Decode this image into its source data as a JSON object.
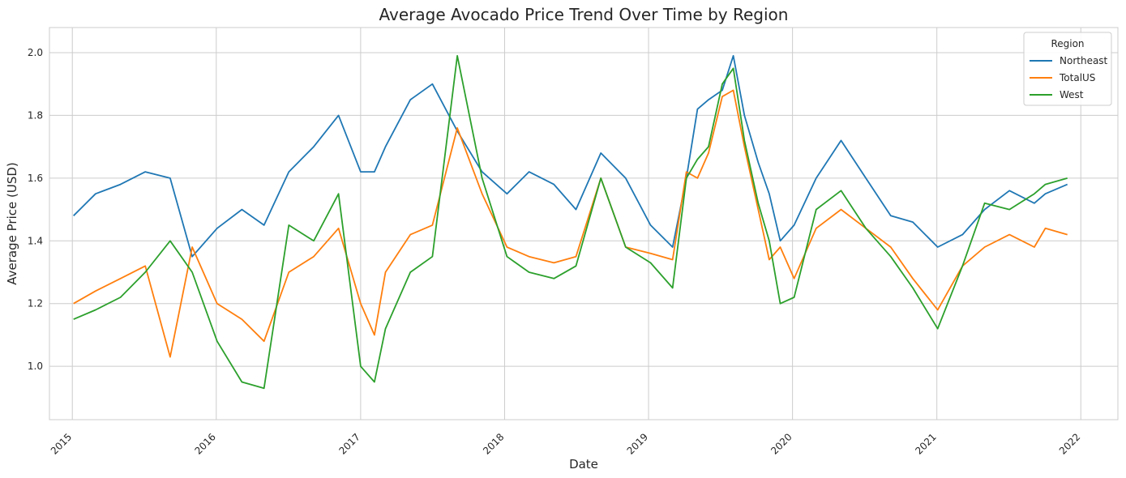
{
  "chart_data": {
    "type": "line",
    "title": "Average Avocado Price Trend Over Time by Region",
    "xlabel": "Date",
    "ylabel": "Average Price (USD)",
    "xlim": [
      "2014-11-04",
      "2022-04-05"
    ],
    "ylim": [
      0.83,
      2.08
    ],
    "x_ticks": [
      "2015",
      "2016",
      "2017",
      "2018",
      "2019",
      "2020",
      "2021",
      "2022"
    ],
    "y_ticks": [
      "1.0",
      "1.2",
      "1.4",
      "1.6",
      "1.8",
      "2.0"
    ],
    "grid": true,
    "legend": {
      "title": "Region",
      "position": "top-right"
    },
    "dates": [
      "2015-01-04",
      "2015-03-01",
      "2015-05-03",
      "2015-07-05",
      "2015-09-06",
      "2015-11-01",
      "2016-01-03",
      "2016-03-06",
      "2016-05-01",
      "2016-07-03",
      "2016-09-04",
      "2016-11-06",
      "2017-01-01",
      "2017-02-05",
      "2017-03-05",
      "2017-05-07",
      "2017-07-02",
      "2017-09-03",
      "2017-11-05",
      "2018-01-07",
      "2018-03-04",
      "2018-05-06",
      "2018-07-01",
      "2018-09-02",
      "2018-11-04",
      "2019-01-06",
      "2019-03-03",
      "2019-04-07",
      "2019-05-05",
      "2019-06-02",
      "2019-07-07",
      "2019-08-04",
      "2019-09-01",
      "2019-10-06",
      "2019-11-03",
      "2019-12-01",
      "2020-01-05",
      "2020-03-01",
      "2020-05-03",
      "2020-07-05",
      "2020-09-06",
      "2020-11-01",
      "2021-01-03",
      "2021-03-07",
      "2021-05-02",
      "2021-07-04",
      "2021-09-05",
      "2021-10-03",
      "2021-11-28"
    ],
    "series": [
      {
        "name": "Northeast",
        "color": "#1f77b4",
        "values": [
          1.48,
          1.55,
          1.58,
          1.62,
          1.6,
          1.35,
          1.44,
          1.5,
          1.45,
          1.62,
          1.7,
          1.8,
          1.62,
          1.62,
          1.7,
          1.85,
          1.9,
          1.75,
          1.62,
          1.55,
          1.62,
          1.58,
          1.5,
          1.68,
          1.6,
          1.45,
          1.38,
          1.6,
          1.82,
          1.85,
          1.88,
          1.99,
          1.8,
          1.65,
          1.55,
          1.4,
          1.45,
          1.6,
          1.72,
          1.6,
          1.48,
          1.46,
          1.38,
          1.42,
          1.5,
          1.56,
          1.52,
          1.55,
          1.58
        ]
      },
      {
        "name": "TotalUS",
        "color": "#ff7f0e",
        "values": [
          1.2,
          1.24,
          1.28,
          1.32,
          1.03,
          1.38,
          1.2,
          1.15,
          1.08,
          1.3,
          1.35,
          1.44,
          1.2,
          1.1,
          1.3,
          1.42,
          1.45,
          1.76,
          1.55,
          1.38,
          1.35,
          1.33,
          1.35,
          1.6,
          1.38,
          1.36,
          1.34,
          1.62,
          1.6,
          1.68,
          1.86,
          1.88,
          1.7,
          1.5,
          1.34,
          1.38,
          1.28,
          1.44,
          1.5,
          1.44,
          1.38,
          1.28,
          1.18,
          1.32,
          1.38,
          1.42,
          1.38,
          1.44,
          1.42
        ]
      },
      {
        "name": "West",
        "color": "#2ca02c",
        "values": [
          1.15,
          1.18,
          1.22,
          1.3,
          1.4,
          1.3,
          1.08,
          0.95,
          0.93,
          1.45,
          1.4,
          1.55,
          1.0,
          0.95,
          1.12,
          1.3,
          1.35,
          1.99,
          1.6,
          1.35,
          1.3,
          1.28,
          1.32,
          1.6,
          1.38,
          1.33,
          1.25,
          1.6,
          1.66,
          1.7,
          1.9,
          1.95,
          1.72,
          1.52,
          1.4,
          1.2,
          1.22,
          1.5,
          1.56,
          1.44,
          1.35,
          1.25,
          1.12,
          1.32,
          1.52,
          1.5,
          1.55,
          1.58,
          1.6
        ]
      }
    ]
  }
}
